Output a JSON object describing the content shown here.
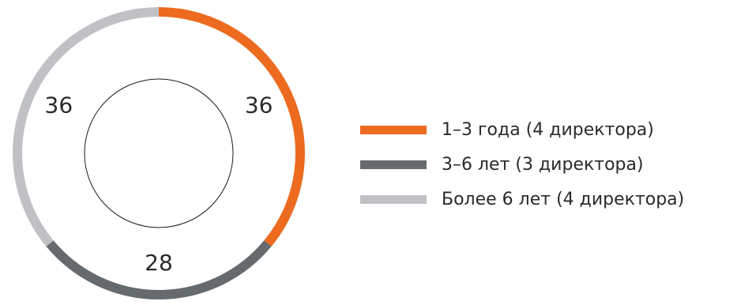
{
  "chart_data": {
    "type": "pie",
    "variant": "donut",
    "title": "",
    "categories": [
      "1–3 года (4 директора)",
      "3–6 лет (3 директора)",
      "Более 6 лет (4 директора)"
    ],
    "values": [
      36,
      28,
      36
    ],
    "value_labels": [
      "36",
      "28",
      "36"
    ],
    "colors": [
      "#ec6b1f",
      "#646a6d",
      "#c0c1c4"
    ],
    "legend_position": "right",
    "inner_circle_outline": "#1a1a1a"
  },
  "legend": {
    "items": [
      {
        "label": "1–3 года (4 директора)",
        "color": "#ec6b1f"
      },
      {
        "label": "3–6 лет (3 директора)",
        "color": "#646a6d"
      },
      {
        "label": "Более 6 лет (4 директора)",
        "color": "#c0c1c4"
      }
    ]
  }
}
